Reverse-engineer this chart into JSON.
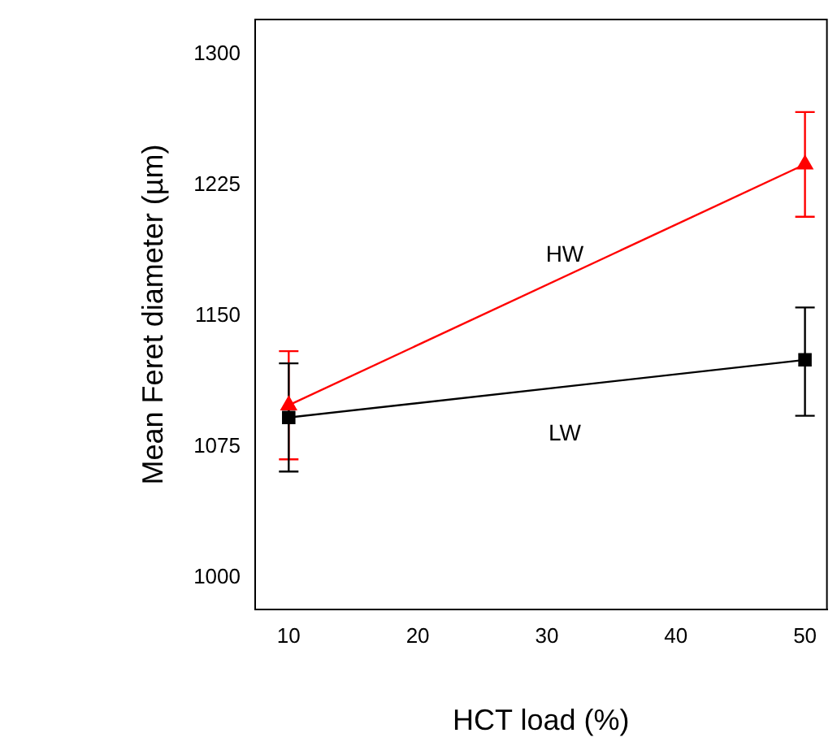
{
  "chart_data": {
    "type": "line",
    "xlabel": "HCT load (%)",
    "ylabel": "Mean Feret diameter (µm)",
    "x": [
      10,
      50
    ],
    "series": [
      {
        "name": "HW",
        "color": "#ff0000",
        "values": [
          1099,
          1237
        ],
        "errors": [
          [
            1068,
            1130
          ],
          [
            1207,
            1267
          ]
        ],
        "marker": "triangle"
      },
      {
        "name": "LW",
        "color": "#000000",
        "values": [
          1092,
          1125
        ],
        "errors": [
          [
            1061,
            1123
          ],
          [
            1093,
            1155
          ]
        ],
        "marker": "square"
      }
    ],
    "xlim": [
      7.4,
      51.7
    ],
    "xticks": [
      10,
      20,
      30,
      40,
      50
    ],
    "ylim": [
      982,
      1320
    ],
    "yticks": [
      1000,
      1075,
      1150,
      1225,
      1300
    ],
    "grid": false,
    "legend": false,
    "line_style": "solid"
  }
}
